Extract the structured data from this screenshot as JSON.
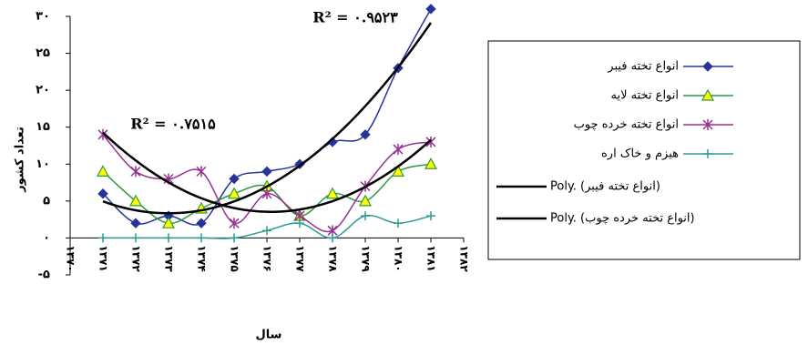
{
  "chart_data": {
    "type": "line",
    "y_label": "تعداد کشور",
    "x_label": "سال",
    "categories": [
      "۱۳۷۰",
      "۱۳۷۱",
      "۱۳۷۲",
      "۱۳۷۳",
      "۱۳۷۴",
      "۱۳۷۵",
      "۱۳۷۶",
      "۱۳۷۷",
      "۱۳۷۸",
      "۱۳۷۹",
      "۱۳۸۰",
      "۱۳۸۱",
      "۱۳۸۲"
    ],
    "series": [
      {
        "name": "انواع تخته فیبر",
        "color": "#26349a",
        "marker": "diamond",
        "values": [
          null,
          6,
          2,
          3,
          2,
          8,
          9,
          10,
          13,
          14,
          23,
          31,
          null
        ]
      },
      {
        "name": "انواع تخته لایه",
        "color": "#2e9a3c",
        "marker": "triangle",
        "values": [
          null,
          9,
          5,
          2,
          4,
          6,
          7,
          3,
          6,
          5,
          9,
          10,
          null
        ]
      },
      {
        "name": "انواع تخته خرده چوب",
        "color": "#9a2f94",
        "marker": "star",
        "values": [
          null,
          14,
          9,
          8,
          9,
          2,
          6,
          3,
          1,
          7,
          12,
          13,
          null
        ]
      },
      {
        "name": "هیزم و خاک اره",
        "color": "#2e9a9a",
        "marker": "plus",
        "values": [
          null,
          0,
          0,
          0,
          0,
          0,
          1,
          2,
          0,
          3,
          2,
          3,
          null
        ]
      }
    ],
    "trendlines": [
      {
        "name": "Poly. (انواع تخته فیبر)",
        "order": 2,
        "color": "#000000",
        "r_squared": 0.9523,
        "r_squared_label": "R² = ۰.۹۵۲۳"
      },
      {
        "name": "Poly. (انواع تخته خرده چوب)",
        "order": 2,
        "color": "#000000",
        "r_squared": 0.7515,
        "r_squared_label": "R² = ۰.۷۵۱۵"
      }
    ],
    "ylim": [
      -5,
      30
    ],
    "yticks": [
      {
        "value": -5,
        "label": "-۵"
      },
      {
        "value": 0,
        "label": "۰"
      },
      {
        "value": 5,
        "label": "۵"
      },
      {
        "value": 10,
        "label": "۱۰"
      },
      {
        "value": 15,
        "label": "۱۵"
      },
      {
        "value": 20,
        "label": "۲۰"
      },
      {
        "value": 25,
        "label": "۲۵"
      },
      {
        "value": 30,
        "label": "۳۰"
      }
    ],
    "grid": false
  }
}
